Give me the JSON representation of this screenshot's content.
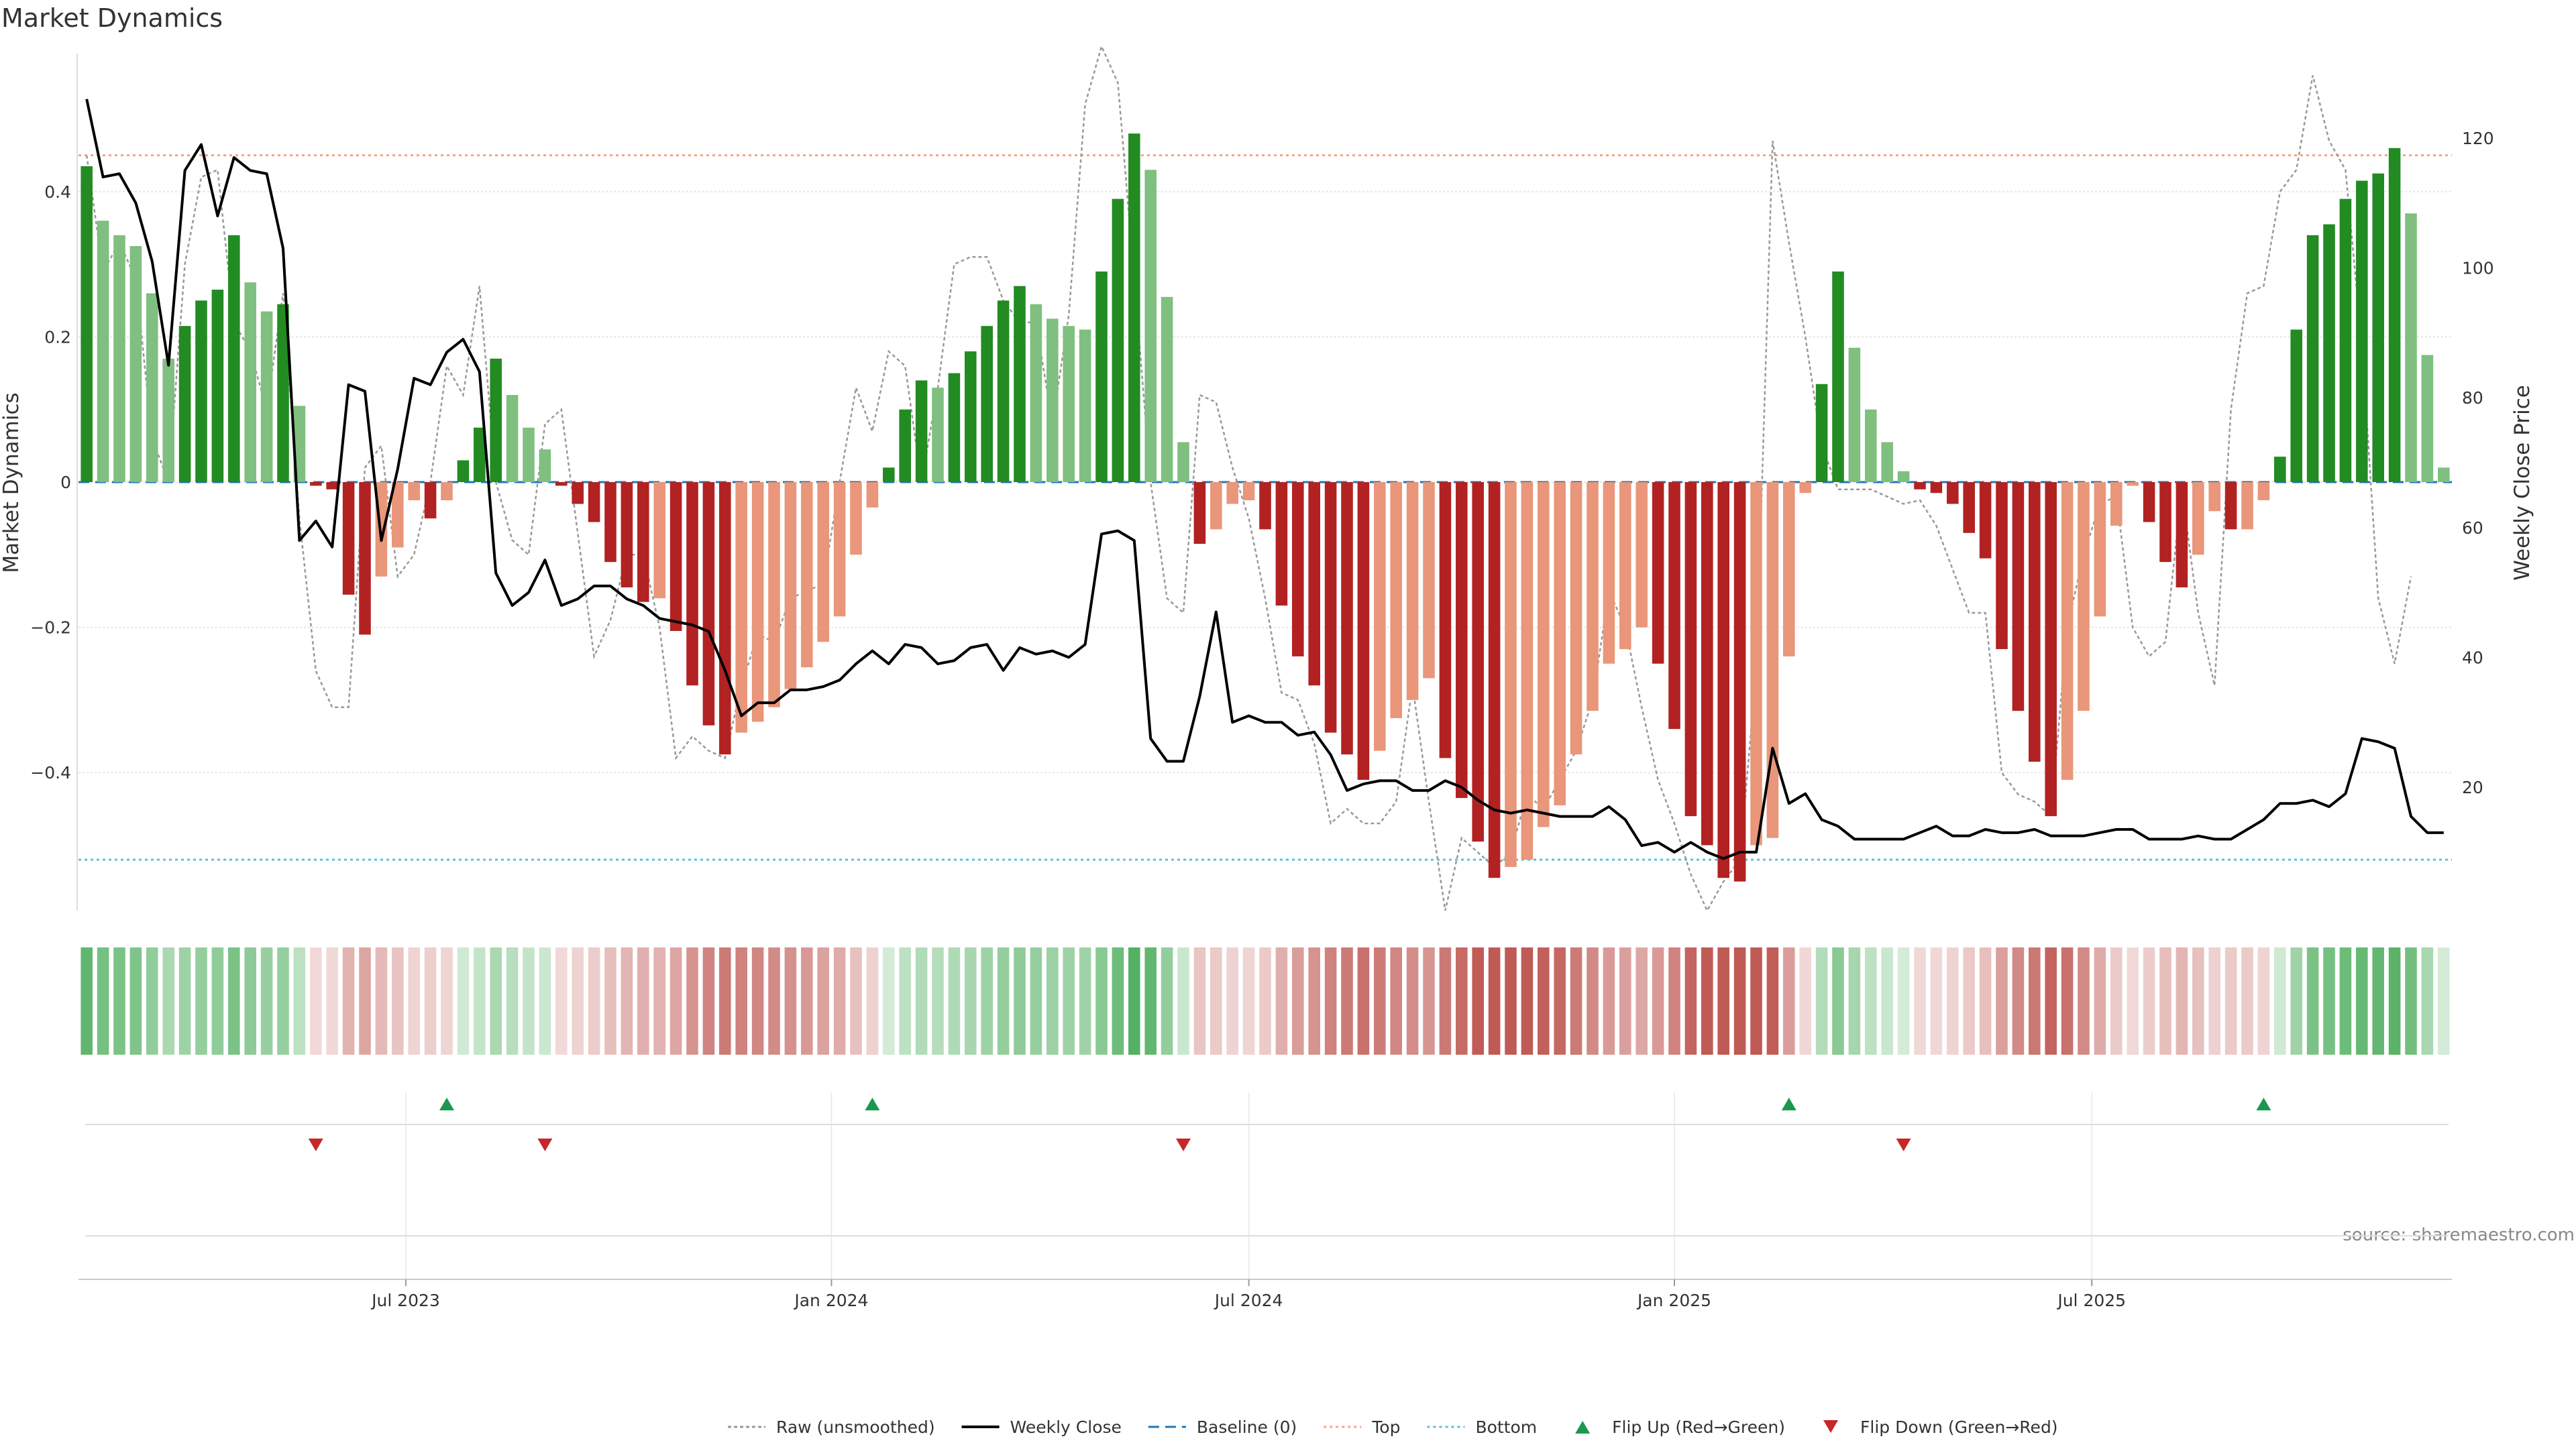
{
  "chart_data": {
    "type": "bar",
    "title": "Market Dynamics",
    "ylabel": "Market Dynamics",
    "y2label": "Weekly Close Price",
    "ylim": [
      -0.59,
      0.59
    ],
    "y2lim": [
      1.0,
      133.0
    ],
    "yticks": [
      0.4,
      0.2,
      0,
      -0.2,
      -0.4
    ],
    "ytick_labels": [
      "0.4",
      "0.2",
      "0",
      "−0.2",
      "−0.4"
    ],
    "y2ticks": [
      120,
      100,
      80,
      60,
      40,
      20
    ],
    "y2tick_labels": [
      "120",
      "100",
      "80",
      "60",
      "40",
      "20"
    ],
    "xticks": [
      "Jul 2023",
      "Jan 2024",
      "Jul 2024",
      "Jan 2025",
      "Jul 2025"
    ],
    "grid": true,
    "legend_position": "bottom-center",
    "top_line": 0.45,
    "bottom_line": -0.52,
    "baseline": 0,
    "source": "source: sharemaestro.com",
    "colors": {
      "strong_up": "#228B22",
      "weak_up": "#7FBF7F",
      "strong_down": "#B22222",
      "weak_down": "#E9967A",
      "close": "#000000",
      "raw": "#999999",
      "top": "#F4A582",
      "bottom": "#5BC0DE",
      "baseline": "#1F77B4",
      "flip_up": "#1A9850",
      "flip_down": "#C62828"
    },
    "series": [
      {
        "name": "Market Dynamics",
        "values": [
          0.435,
          0.36,
          0.34,
          0.325,
          0.26,
          0.17,
          0.215,
          0.25,
          0.265,
          0.34,
          0.275,
          0.235,
          0.245,
          0.105,
          -0.005,
          -0.01,
          -0.155,
          -0.21,
          -0.13,
          -0.09,
          -0.025,
          -0.05,
          -0.025,
          0.03,
          0.075,
          0.17,
          0.12,
          0.075,
          0.045,
          -0.005,
          -0.03,
          -0.055,
          -0.11,
          -0.145,
          -0.165,
          -0.16,
          -0.205,
          -0.28,
          -0.335,
          -0.375,
          -0.345,
          -0.33,
          -0.31,
          -0.285,
          -0.255,
          -0.22,
          -0.185,
          -0.1,
          -0.035,
          0.02,
          0.1,
          0.14,
          0.13,
          0.15,
          0.18,
          0.215,
          0.25,
          0.27,
          0.245,
          0.225,
          0.215,
          0.21,
          0.29,
          0.39,
          0.48,
          0.43,
          0.255,
          0.055,
          -0.085,
          -0.065,
          -0.03,
          -0.025,
          -0.065,
          -0.17,
          -0.24,
          -0.28,
          -0.345,
          -0.375,
          -0.41,
          -0.37,
          -0.325,
          -0.3,
          -0.27,
          -0.38,
          -0.435,
          -0.495,
          -0.545,
          -0.53,
          -0.52,
          -0.475,
          -0.445,
          -0.375,
          -0.315,
          -0.25,
          -0.23,
          -0.2,
          -0.25,
          -0.34,
          -0.46,
          -0.5,
          -0.545,
          -0.55,
          -0.5,
          -0.49,
          -0.24,
          -0.015,
          0.135,
          0.29,
          0.185,
          0.1,
          0.055,
          0.015,
          -0.01,
          -0.015,
          -0.03,
          -0.07,
          -0.105,
          -0.23,
          -0.315,
          -0.385,
          -0.46,
          -0.41,
          -0.315,
          -0.185,
          -0.06,
          -0.005,
          -0.055,
          -0.11,
          -0.145,
          -0.1,
          -0.04,
          -0.065,
          -0.065,
          -0.025,
          0.035,
          0.21,
          0.34,
          0.355,
          0.39,
          0.415,
          0.425,
          0.46,
          0.37,
          0.175,
          0.02
        ]
      },
      {
        "name": "Raw (unsmoothed)",
        "values": [
          0.45,
          0.29,
          0.33,
          0.28,
          0.06,
          0.0,
          0.3,
          0.42,
          0.43,
          0.22,
          0.18,
          0.1,
          0.26,
          -0.05,
          -0.26,
          -0.31,
          -0.31,
          0.02,
          0.05,
          -0.13,
          -0.1,
          0.0,
          0.16,
          0.12,
          0.27,
          0.0,
          -0.08,
          -0.1,
          0.08,
          0.1,
          -0.07,
          -0.24,
          -0.19,
          -0.1,
          -0.1,
          -0.2,
          -0.38,
          -0.35,
          -0.37,
          -0.38,
          -0.28,
          -0.21,
          -0.22,
          -0.16,
          -0.15,
          -0.14,
          0.0,
          0.13,
          0.07,
          0.18,
          0.16,
          0.0,
          0.13,
          0.3,
          0.31,
          0.31,
          0.25,
          0.22,
          0.22,
          0.08,
          0.23,
          0.52,
          0.6,
          0.55,
          0.28,
          0.0,
          -0.16,
          -0.18,
          0.12,
          0.11,
          0.02,
          -0.05,
          -0.16,
          -0.29,
          -0.3,
          -0.36,
          -0.47,
          -0.45,
          -0.47,
          -0.47,
          -0.44,
          -0.28,
          -0.44,
          -0.59,
          -0.49,
          -0.51,
          -0.53,
          -0.51,
          -0.43,
          -0.45,
          -0.41,
          -0.37,
          -0.3,
          -0.15,
          -0.2,
          -0.31,
          -0.41,
          -0.47,
          -0.54,
          -0.59,
          -0.55,
          -0.52,
          -0.26,
          0.47,
          0.33,
          0.2,
          0.05,
          -0.01,
          -0.01,
          -0.01,
          -0.02,
          -0.03,
          -0.025,
          -0.06,
          -0.12,
          -0.18,
          -0.18,
          -0.4,
          -0.43,
          -0.44,
          -0.46,
          -0.2,
          -0.1,
          -0.03,
          -0.02,
          -0.2,
          -0.24,
          -0.22,
          -0.01,
          -0.18,
          -0.28,
          0.1,
          0.26,
          0.27,
          0.4,
          0.43,
          0.56,
          0.47,
          0.43,
          0.19,
          -0.16,
          -0.25,
          -0.13
        ]
      },
      {
        "name": "Weekly Close",
        "values": [
          126.0,
          114.0,
          114.5,
          110.0,
          101.0,
          85.0,
          115.0,
          119.0,
          108.0,
          117.0,
          115.0,
          114.5,
          103.0,
          58.0,
          61.0,
          57.0,
          82.0,
          81.0,
          58.0,
          69.0,
          83.0,
          82.0,
          87.0,
          89.0,
          84.0,
          53.0,
          48.0,
          50.0,
          55.0,
          48.0,
          49.0,
          51.0,
          51.0,
          49.0,
          48.0,
          46.0,
          45.5,
          45.0,
          44.0,
          38.0,
          31.0,
          33.0,
          33.0,
          35.0,
          35.0,
          35.5,
          36.5,
          39.0,
          41.0,
          39.0,
          42.0,
          41.5,
          39.0,
          39.5,
          41.5,
          42.0,
          38.0,
          41.5,
          40.5,
          41.0,
          40.0,
          42.0,
          59.0,
          59.5,
          58.0,
          27.5,
          24.0,
          24.0,
          34.0,
          47.0,
          30.0,
          31.0,
          30.0,
          30.0,
          28.0,
          28.5,
          25.0,
          19.5,
          20.5,
          21.0,
          21.0,
          19.5,
          19.5,
          21.0,
          20.0,
          18.0,
          16.5,
          16.0,
          16.5,
          16.0,
          15.5,
          15.5,
          15.5,
          17.0,
          15.0,
          11.0,
          11.5,
          10.0,
          11.5,
          10.0,
          9.0,
          10.0,
          10.0,
          26.0,
          17.5,
          19.0,
          15.0,
          14.0,
          12.0,
          12.0,
          12.0,
          12.0,
          13.0,
          14.0,
          12.5,
          12.5,
          13.5,
          13.0,
          13.0,
          13.5,
          12.5,
          12.5,
          12.5,
          13.0,
          13.5,
          13.5,
          12.0,
          12.0,
          12.0,
          12.5,
          12.0,
          12.0,
          13.5,
          15.0,
          17.5,
          17.5,
          18.0,
          17.0,
          19.0,
          27.5,
          27.0,
          26.0,
          15.5,
          13.0,
          13.0
        ]
      },
      {
        "name": "Baseline (0)"
      },
      {
        "name": "Top"
      },
      {
        "name": "Bottom"
      },
      {
        "name": "Flip Up (Red→Green)"
      },
      {
        "name": "Flip Down (Green→Red)"
      }
    ],
    "flips": {
      "up_indices": [
        22,
        48,
        104,
        133
      ],
      "down_indices": [
        14,
        28,
        67,
        111
      ]
    }
  }
}
